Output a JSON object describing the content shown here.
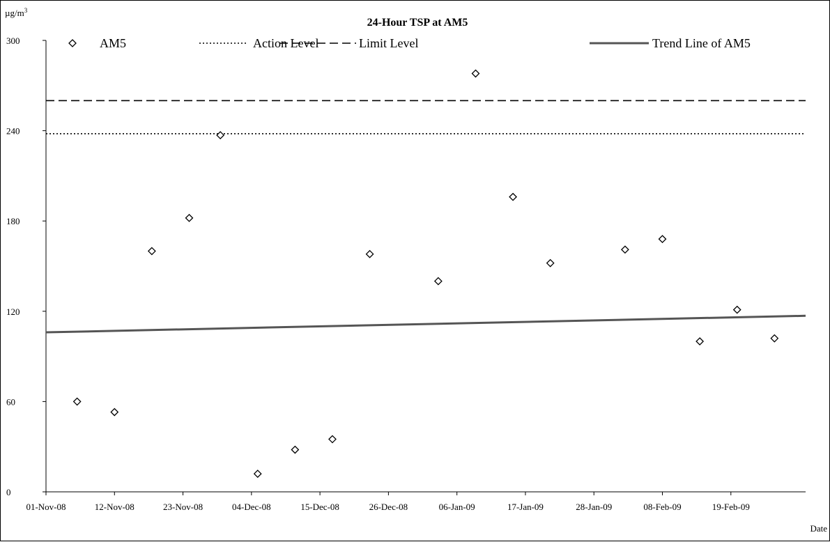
{
  "chart_data": {
    "type": "scatter",
    "title": "24-Hour TSP at AM5",
    "ylabel": "µg/m",
    "ylabel_superscript": "3",
    "xlabel": "Date",
    "ylim": [
      0,
      300
    ],
    "yticks": [
      0,
      60,
      120,
      180,
      240,
      300
    ],
    "xlim": [
      "2008-11-01",
      "2009-03-03"
    ],
    "xticks": [
      "2008-11-01",
      "2008-11-12",
      "2008-11-23",
      "2008-12-04",
      "2008-12-15",
      "2008-12-26",
      "2009-01-06",
      "2009-01-17",
      "2009-01-28",
      "2009-02-08",
      "2009-02-19"
    ],
    "xtick_labels": [
      "01-Nov-08",
      "12-Nov-08",
      "23-Nov-08",
      "04-Dec-08",
      "15-Dec-08",
      "26-Dec-08",
      "06-Jan-09",
      "17-Jan-09",
      "28-Jan-09",
      "08-Feb-09",
      "19-Feb-09"
    ],
    "grid": false,
    "legend_position": "top",
    "series": [
      {
        "name": "AM5",
        "kind": "scatter",
        "marker": "diamond",
        "color": "#000000",
        "x": [
          "2008-11-06",
          "2008-11-12",
          "2008-11-18",
          "2008-11-24",
          "2008-11-29",
          "2008-12-05",
          "2008-12-11",
          "2008-12-17",
          "2008-12-23",
          "2009-01-03",
          "2009-01-09",
          "2009-01-15",
          "2009-01-21",
          "2009-02-02",
          "2009-02-08",
          "2009-02-14",
          "2009-02-20",
          "2009-02-26"
        ],
        "values": [
          60,
          53,
          160,
          182,
          237,
          12,
          28,
          35,
          158,
          140,
          278,
          196,
          152,
          161,
          168,
          100,
          121,
          102
        ]
      },
      {
        "name": "Action Level",
        "kind": "line",
        "style": "dotted",
        "color": "#000000",
        "x": [
          "2008-11-01",
          "2009-03-03"
        ],
        "values": [
          238,
          238
        ]
      },
      {
        "name": "Limit Level",
        "kind": "line",
        "style": "dashed",
        "color": "#000000",
        "x": [
          "2008-11-01",
          "2009-03-03"
        ],
        "values": [
          260,
          260
        ]
      },
      {
        "name": "Trend Line of AM5",
        "kind": "line",
        "style": "solid-thick",
        "color": "#555555",
        "x": [
          "2008-11-01",
          "2009-03-03"
        ],
        "values": [
          106,
          117
        ]
      }
    ]
  }
}
